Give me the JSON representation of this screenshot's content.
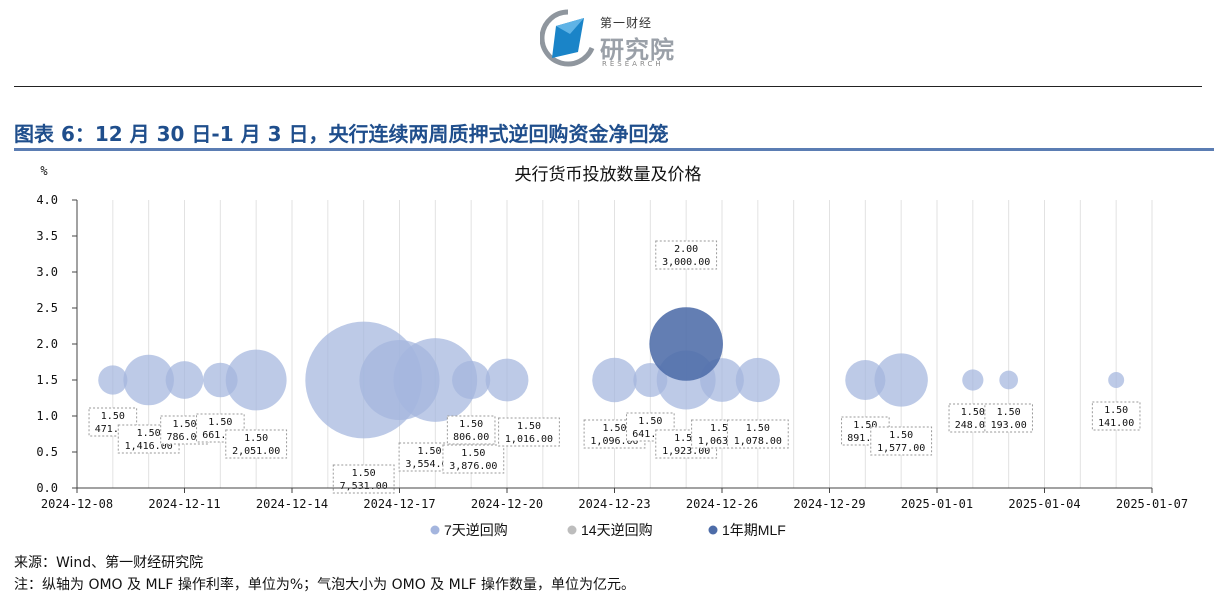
{
  "header": {
    "logo_small": "第一财经",
    "logo_main": "研究院",
    "logo_sub": "RESEARCH"
  },
  "figure_title": "图表 6：12 月 30 日-1 月 3 日，央行连续两周质押式逆回购资金净回笼",
  "colors": {
    "omo7": "#a4b5de",
    "omo14": "#bdbdbd",
    "mlf": "#4d6ca8",
    "title_blue": "#1f4e8c"
  },
  "chart_data": {
    "type": "bubble",
    "title": "央行货币投放数量及价格",
    "ylabel": "%",
    "ylim": [
      0,
      4.0
    ],
    "y_ticks": [
      "0.0",
      "0.5",
      "1.0",
      "1.5",
      "2.0",
      "2.5",
      "3.0",
      "3.5",
      "4.0"
    ],
    "x_range": [
      "2024-12-08",
      "2025-01-07"
    ],
    "x_ticks": [
      "2024-12-08",
      "2024-12-11",
      "2024-12-14",
      "2024-12-17",
      "2024-12-20",
      "2024-12-23",
      "2024-12-26",
      "2024-12-29",
      "2025-01-01",
      "2025-01-04",
      "2025-01-07"
    ],
    "grid": "vertical",
    "legend_position": "bottom",
    "series": [
      {
        "name": "7天逆回购",
        "points": [
          {
            "date": "2024-12-09",
            "rate": 1.5,
            "amount": 471.0,
            "rate_label": "1.50",
            "amount_label": "471.00"
          },
          {
            "date": "2024-12-10",
            "rate": 1.5,
            "amount": 1416.0,
            "rate_label": "1.50",
            "amount_label": "1,416.00"
          },
          {
            "date": "2024-12-11",
            "rate": 1.5,
            "amount": 786.0,
            "rate_label": "1.50",
            "amount_label": "786.00"
          },
          {
            "date": "2024-12-12",
            "rate": 1.5,
            "amount": 661.0,
            "rate_label": "1.50",
            "amount_label": "661.00"
          },
          {
            "date": "2024-12-13",
            "rate": 1.5,
            "amount": 2051.0,
            "rate_label": "1.50",
            "amount_label": "2,051.00"
          },
          {
            "date": "2024-12-16",
            "rate": 1.5,
            "amount": 7531.0,
            "rate_label": "1.50",
            "amount_label": "7,531.00"
          },
          {
            "date": "2024-12-17",
            "rate": 1.5,
            "amount": 3554.0,
            "rate_label": "1.50",
            "amount_label": "3,554.00"
          },
          {
            "date": "2024-12-18",
            "rate": 1.5,
            "amount": 3876.0,
            "rate_label": "1.50",
            "amount_label": "3,876.00"
          },
          {
            "date": "2024-12-19",
            "rate": 1.5,
            "amount": 806.0,
            "rate_label": "1.50",
            "amount_label": "806.00"
          },
          {
            "date": "2024-12-20",
            "rate": 1.5,
            "amount": 1016.0,
            "rate_label": "1.50",
            "amount_label": "1,016.00"
          },
          {
            "date": "2024-12-23",
            "rate": 1.5,
            "amount": 1096.0,
            "rate_label": "1.50",
            "amount_label": "1,096.00"
          },
          {
            "date": "2024-12-24",
            "rate": 1.5,
            "amount": 641.0,
            "rate_label": "1.50",
            "amount_label": "641.00"
          },
          {
            "date": "2024-12-25",
            "rate": 1.5,
            "amount": 1923.0,
            "rate_label": "1.50",
            "amount_label": "1,923.00"
          },
          {
            "date": "2024-12-26",
            "rate": 1.5,
            "amount": 1063.0,
            "rate_label": "1.50",
            "amount_label": "1,063.00"
          },
          {
            "date": "2024-12-27",
            "rate": 1.5,
            "amount": 1078.0,
            "rate_label": "1.50",
            "amount_label": "1,078.00"
          },
          {
            "date": "2024-12-30",
            "rate": 1.5,
            "amount": 891.0,
            "rate_label": "1.50",
            "amount_label": "891.00"
          },
          {
            "date": "2024-12-31",
            "rate": 1.5,
            "amount": 1577.0,
            "rate_label": "1.50",
            "amount_label": "1,577.00"
          },
          {
            "date": "2025-01-02",
            "rate": 1.5,
            "amount": 248.0,
            "rate_label": "1.50",
            "amount_label": "248.00"
          },
          {
            "date": "2025-01-03",
            "rate": 1.5,
            "amount": 193.0,
            "rate_label": "1.50",
            "amount_label": "193.00"
          },
          {
            "date": "2025-01-06",
            "rate": 1.5,
            "amount": 141.0,
            "rate_label": "1.50",
            "amount_label": "141.00"
          }
        ]
      },
      {
        "name": "14天逆回购",
        "points": []
      },
      {
        "name": "1年期MLF",
        "points": [
          {
            "date": "2024-12-25",
            "rate": 2.0,
            "amount": 3000.0,
            "rate_label": "2.00",
            "amount_label": "3,000.00"
          }
        ]
      }
    ]
  },
  "footer": {
    "source": "来源：Wind、第一财经研究院",
    "note": "注：纵轴为 OMO 及 MLF 操作利率，单位为%；气泡大小为 OMO 及 MLF 操作数量，单位为亿元。"
  }
}
